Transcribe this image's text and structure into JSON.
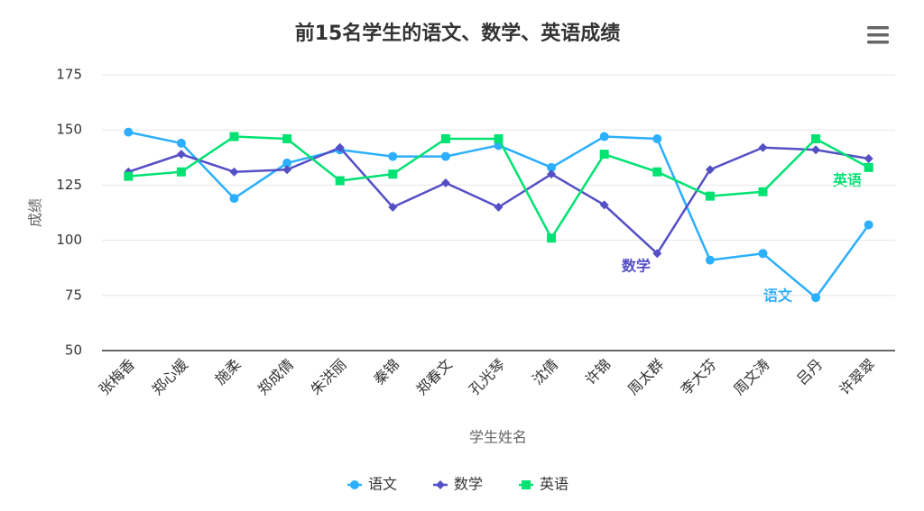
{
  "chart_data": {
    "type": "line",
    "title": "前15名学生的语文、数学、英语成绩",
    "x_label": "学生姓名",
    "y_label": "成绩",
    "categories": [
      "张梅香",
      "郑心媛",
      "施柔",
      "郑成倩",
      "朱洪丽",
      "秦锦",
      "郑春文",
      "孔光琴",
      "沈倩",
      "许锦",
      "周太群",
      "李大芬",
      "周文涛",
      "吕丹",
      "许翠翠"
    ],
    "ylim": [
      50,
      175
    ],
    "yticks": [
      50,
      75,
      100,
      125,
      150,
      175
    ],
    "grid": true,
    "series": [
      {
        "name": "语文",
        "color": "#2caffe",
        "marker": "circle",
        "values": [
          149,
          144,
          119,
          135,
          141,
          138,
          138,
          143,
          133,
          147,
          146,
          91,
          94,
          74,
          107
        ]
      },
      {
        "name": "数学",
        "color": "#544fc5",
        "marker": "diamond",
        "values": [
          131,
          139,
          131,
          132,
          142,
          115,
          126,
          115,
          130,
          116,
          94,
          132,
          142,
          141,
          137
        ]
      },
      {
        "name": "英语",
        "color": "#00e272",
        "marker": "square",
        "values": [
          129,
          131,
          147,
          146,
          127,
          130,
          146,
          146,
          101,
          139,
          131,
          120,
          122,
          146,
          133
        ]
      }
    ]
  }
}
